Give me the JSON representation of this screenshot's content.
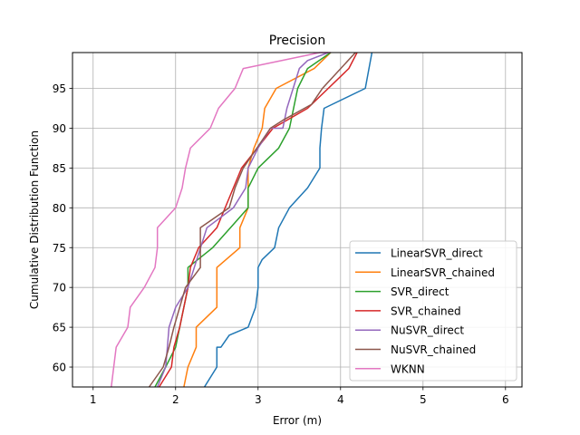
{
  "chart_data": {
    "type": "line",
    "title": "Precision",
    "xlabel": "Error (m)",
    "ylabel": "Cumulative Distribution Function",
    "xlim": [
      0.75,
      6.2
    ],
    "ylim": [
      57.5,
      99.5
    ],
    "xticks": [
      1,
      2,
      3,
      4,
      5,
      6
    ],
    "yticks": [
      60,
      65,
      70,
      75,
      80,
      85,
      90,
      95
    ],
    "grid": true,
    "legend_position": "lower right",
    "series": [
      {
        "name": "LinearSVR_direct",
        "color": "#1f77b4",
        "x": [
          2.35,
          2.5,
          2.5,
          2.55,
          2.65,
          2.88,
          2.97,
          3.0,
          3.0,
          3.05,
          3.2,
          3.25,
          3.38,
          3.6,
          3.75,
          3.75,
          3.77,
          3.8,
          4.3,
          4.38
        ],
        "y": [
          57.5,
          60,
          62.5,
          62.5,
          64,
          65,
          67.5,
          70,
          72.5,
          73.5,
          75,
          77.5,
          80,
          82.5,
          85,
          87.5,
          90,
          92.5,
          95,
          99.5
        ]
      },
      {
        "name": "LinearSVR_chained",
        "color": "#ff7f0e",
        "x": [
          2.1,
          2.15,
          2.25,
          2.25,
          2.5,
          2.5,
          2.78,
          2.78,
          2.88,
          2.88,
          2.95,
          3.05,
          3.08,
          3.22,
          3.68,
          3.88
        ],
        "y": [
          57.5,
          60,
          62.5,
          65,
          67.5,
          72.5,
          75,
          77.5,
          80,
          85,
          87.5,
          90,
          92.5,
          95,
          97.5,
          99.5
        ]
      },
      {
        "name": "SVR_direct",
        "color": "#2ca02c",
        "x": [
          1.75,
          1.88,
          2.0,
          2.05,
          2.15,
          2.15,
          2.45,
          2.88,
          2.88,
          3.0,
          3.25,
          3.38,
          3.48,
          3.6,
          3.88
        ],
        "y": [
          57.5,
          60,
          62.5,
          65,
          70,
          72.5,
          75,
          80,
          82.5,
          85,
          87.5,
          90,
          95,
          97.5,
          99.5
        ]
      },
      {
        "name": "SVR_chained",
        "color": "#d62728",
        "x": [
          1.8,
          1.95,
          1.98,
          2.05,
          2.15,
          2.18,
          2.28,
          2.5,
          2.8,
          3.18,
          3.6,
          4.1,
          4.2
        ],
        "y": [
          57.5,
          60,
          62.5,
          65,
          70,
          72.5,
          75,
          77.5,
          85,
          90,
          92.5,
          97.5,
          99.5
        ]
      },
      {
        "name": "NuSVR_direct",
        "color": "#9467bd",
        "x": [
          1.78,
          1.88,
          1.9,
          1.92,
          2.0,
          2.15,
          2.38,
          2.7,
          2.85,
          2.88,
          3.0,
          3.15,
          3.3,
          3.35,
          3.5,
          3.6,
          3.85
        ],
        "y": [
          57.5,
          60,
          62.5,
          65,
          67.5,
          70,
          77.5,
          80,
          82.5,
          85,
          87.5,
          90,
          90,
          92.5,
          97.5,
          98.5,
          99.5
        ]
      },
      {
        "name": "NuSVR_chained",
        "color": "#8c564b",
        "x": [
          1.68,
          1.85,
          1.92,
          1.98,
          2.12,
          2.3,
          2.3,
          2.65,
          2.72,
          2.82,
          3.15,
          3.3,
          3.65,
          3.78,
          4.18
        ],
        "y": [
          57.5,
          60,
          62.5,
          65,
          70,
          72.5,
          77.5,
          80,
          82.5,
          85,
          90,
          91,
          93,
          95,
          99.5
        ]
      },
      {
        "name": "WKNN",
        "color": "#e377c2",
        "x": [
          1.22,
          1.25,
          1.28,
          1.42,
          1.45,
          1.62,
          1.75,
          1.78,
          1.78,
          2.0,
          2.08,
          2.12,
          2.18,
          2.42,
          2.52,
          2.72,
          2.82,
          3.75,
          3.88
        ],
        "y": [
          57.5,
          60,
          62.5,
          65,
          67.5,
          70,
          72.5,
          75,
          77.5,
          80,
          82.5,
          85,
          87.5,
          90,
          92.5,
          95,
          97.5,
          99.5,
          99.5
        ]
      }
    ]
  }
}
